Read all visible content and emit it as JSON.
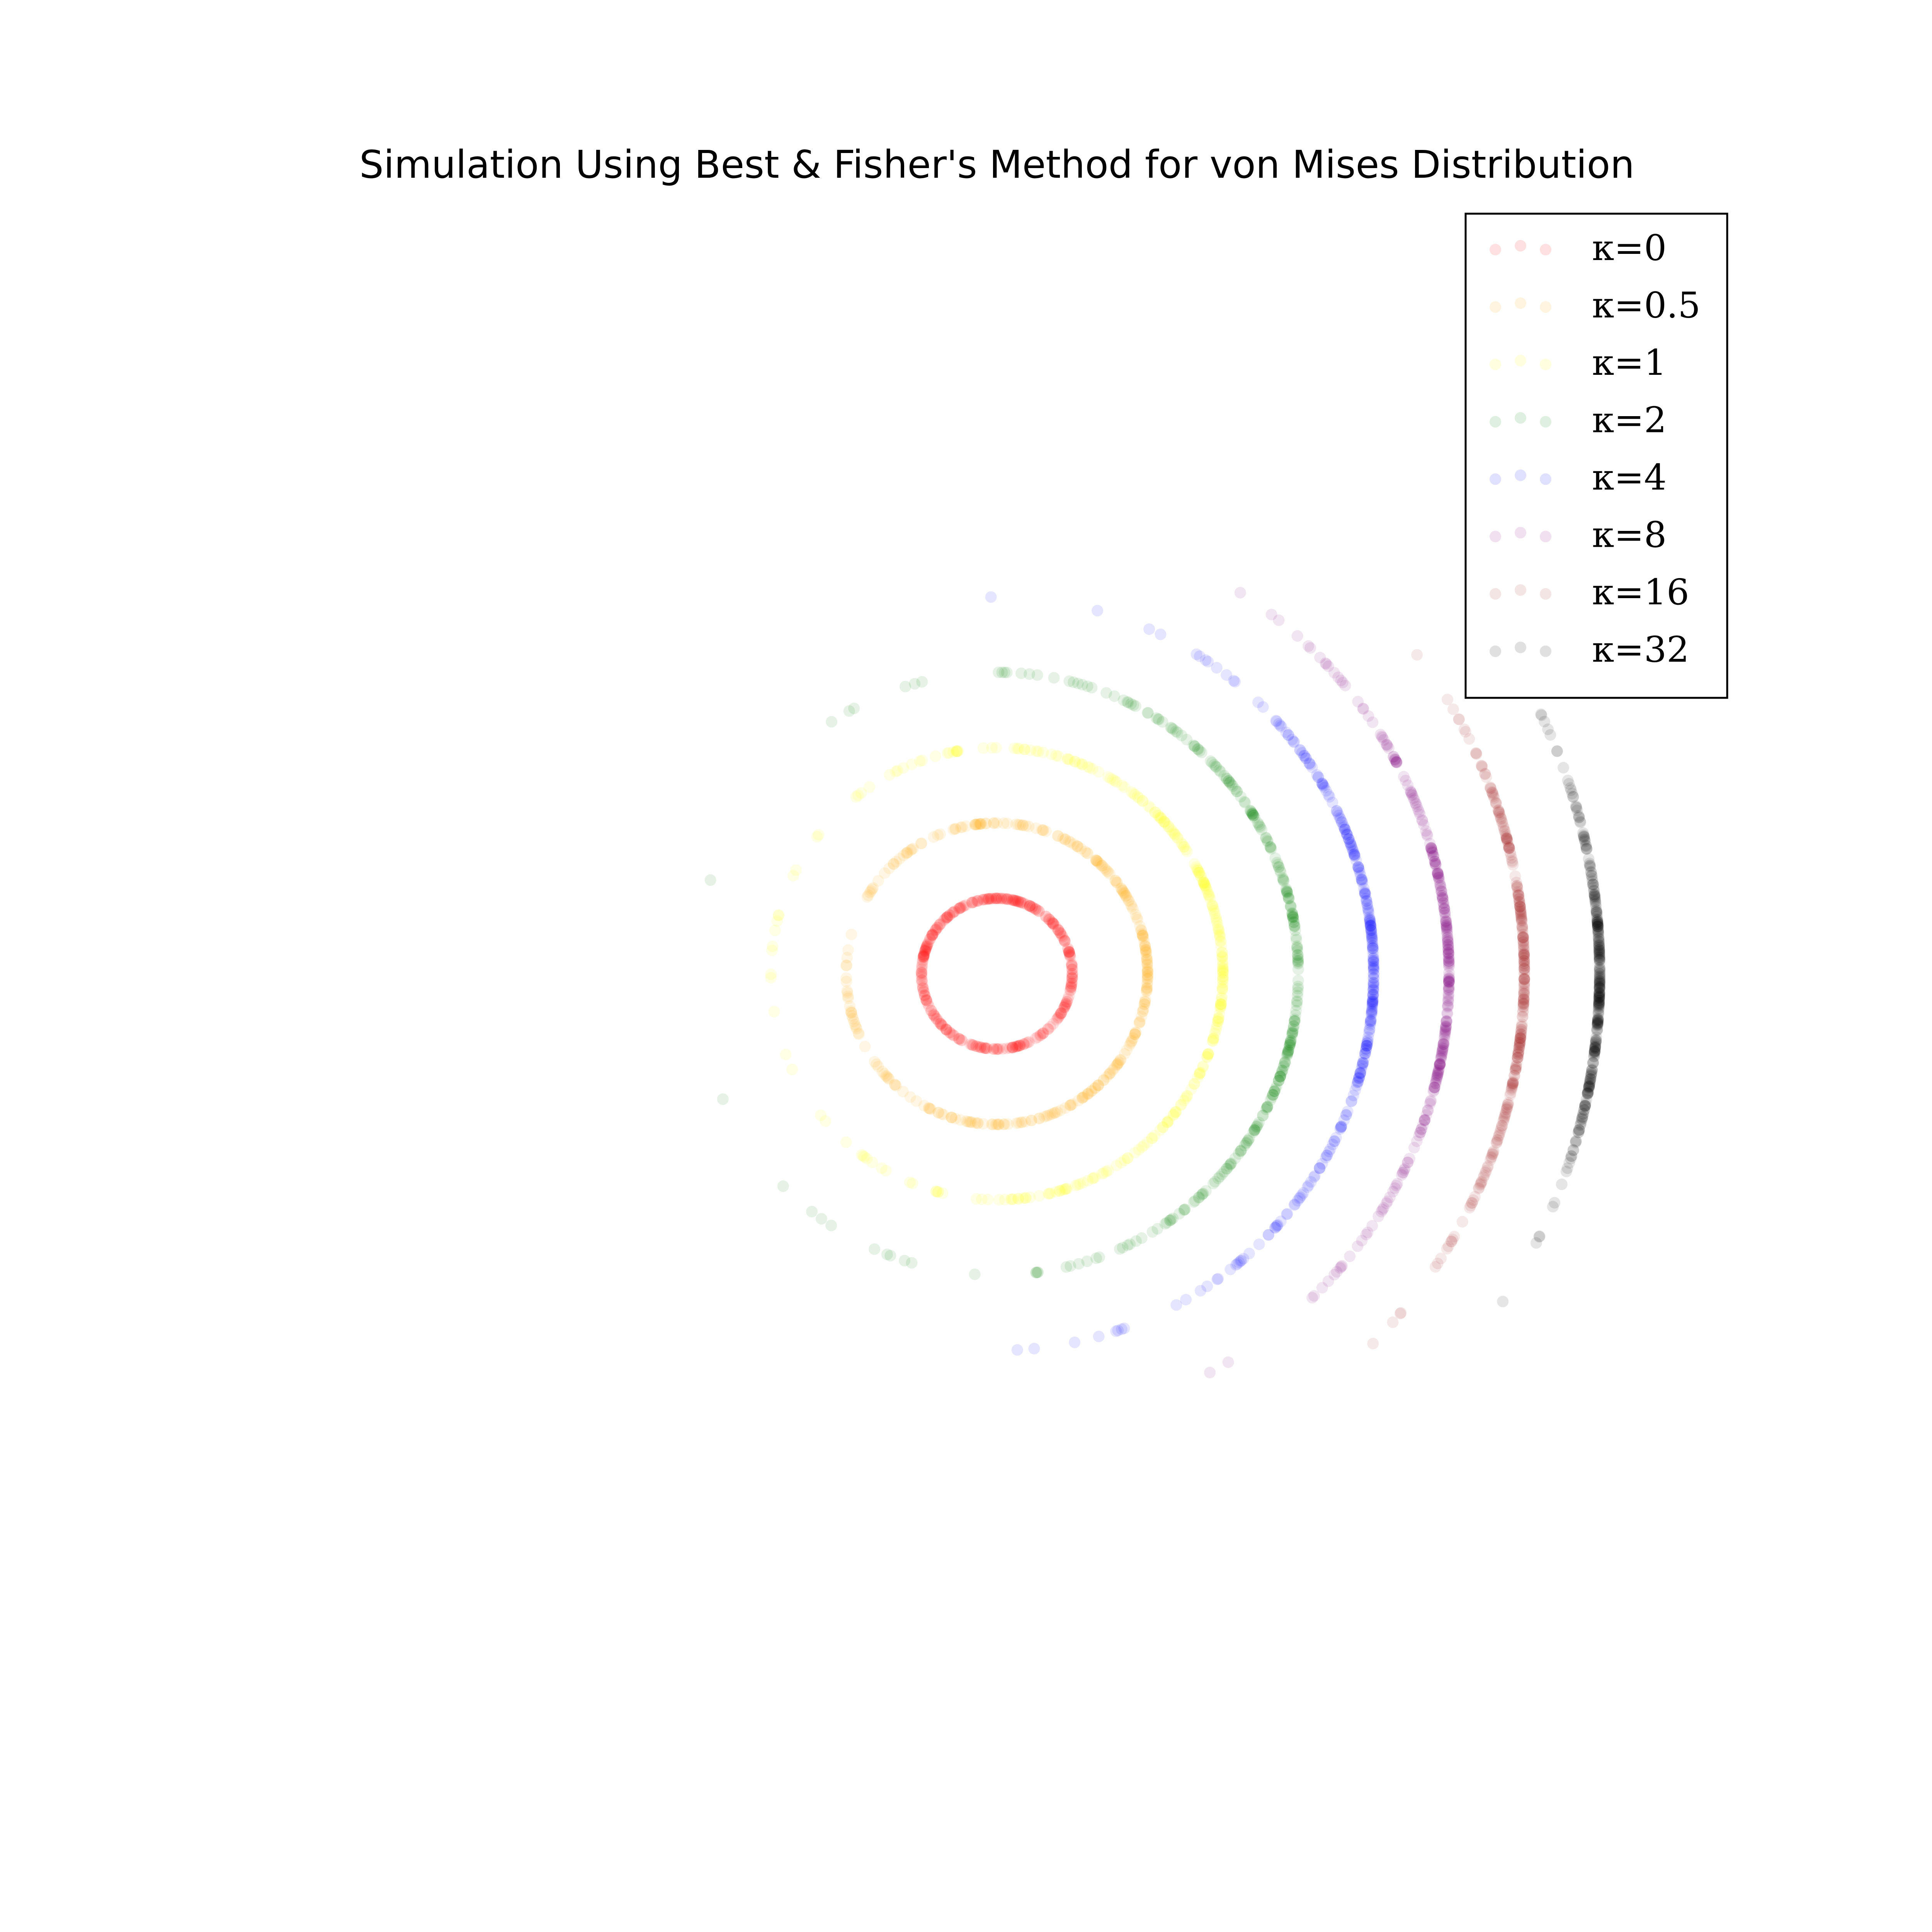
{
  "chart_data": {
    "type": "scatter",
    "title": "Simulation Using Best & Fisher's Method for von Mises Distribution",
    "xlabel": "",
    "ylabel": "",
    "axes_visible": false,
    "grid": false,
    "legend_position": "top-right",
    "center": [
      0,
      0
    ],
    "xlim": [
      -8.5,
      8.5
    ],
    "ylim": [
      -8.5,
      8.5
    ],
    "series": [
      {
        "name": "κ=0",
        "kappa": 0,
        "radius": 1,
        "color": "#ff0000",
        "n_points": 300
      },
      {
        "name": "κ=0.5",
        "kappa": 0.5,
        "radius": 2,
        "color": "#ffa500",
        "n_points": 300
      },
      {
        "name": "κ=1",
        "kappa": 1,
        "radius": 3,
        "color": "#ffff00",
        "n_points": 300
      },
      {
        "name": "κ=2",
        "kappa": 2,
        "radius": 4,
        "color": "#008000",
        "n_points": 300
      },
      {
        "name": "κ=4",
        "kappa": 4,
        "radius": 5,
        "color": "#0000ff",
        "n_points": 300
      },
      {
        "name": "κ=8",
        "kappa": 8,
        "radius": 6,
        "color": "#800080",
        "n_points": 300
      },
      {
        "name": "κ=16",
        "kappa": 16,
        "radius": 7,
        "color": "#a52a2a",
        "n_points": 300
      },
      {
        "name": "κ=32",
        "kappa": 32,
        "radius": 8,
        "color": "#000000",
        "n_points": 300
      }
    ]
  }
}
